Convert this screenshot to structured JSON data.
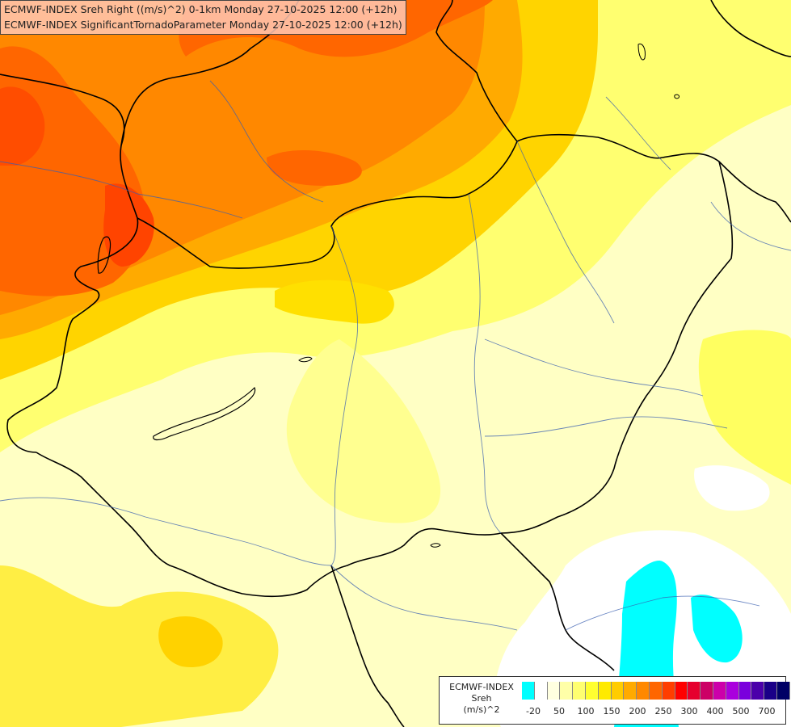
{
  "header": {
    "line1": "ECMWF-INDEX Sreh Right ((m/s)^2) 0-1km Monday 27-10-2025 12:00 (+12h)",
    "line2": "ECMWF-INDEX SignificantTornadoParameter Monday 27-10-2025 12:00 (+12h)"
  },
  "legend": {
    "line1": "ECMWF-INDEX",
    "line2": "Sreh",
    "line3": "(m/s)^2",
    "colors": [
      "#00ffff",
      "#ffffff",
      "#ffffe0",
      "#ffffa8",
      "#ffff70",
      "#ffff30",
      "#ffea00",
      "#ffcc00",
      "#ffaa00",
      "#ff8800",
      "#ff6600",
      "#ff3d00",
      "#ff0000",
      "#e6002e",
      "#cc0066",
      "#cc00aa",
      "#aa00dd",
      "#7a00dd",
      "#4b00aa",
      "#1a0088",
      "#000066"
    ],
    "tick_labels": [
      "-20",
      "50",
      "100",
      "150",
      "200",
      "250",
      "300",
      "400",
      "500",
      "700"
    ]
  }
}
